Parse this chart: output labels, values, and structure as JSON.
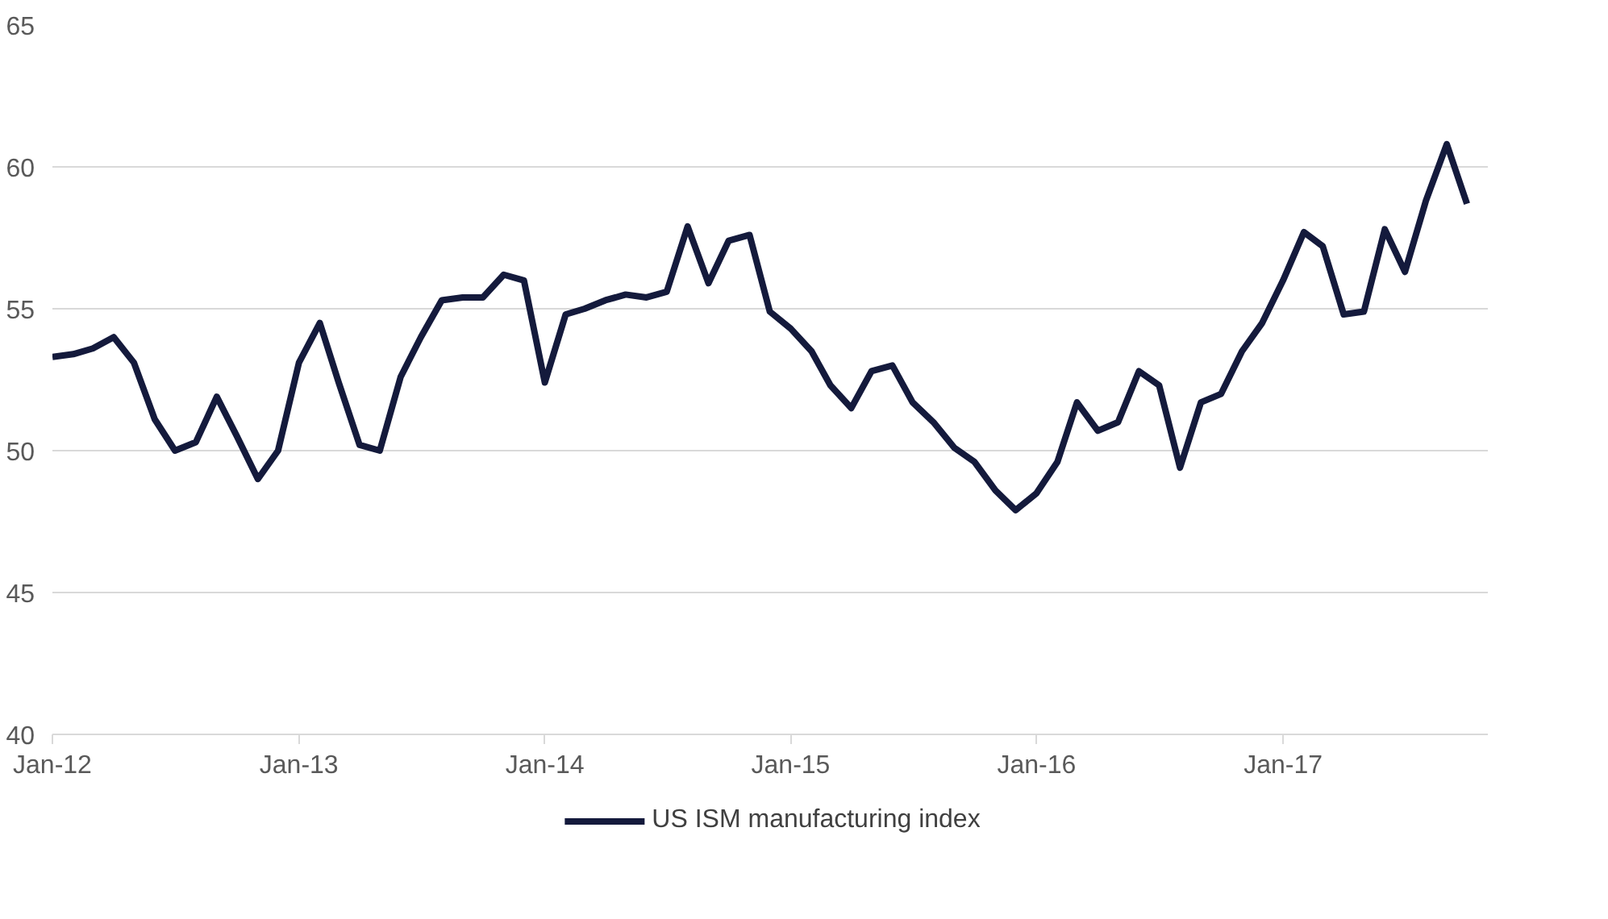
{
  "chart_data": {
    "type": "line",
    "x": [
      "2012-01",
      "2012-02",
      "2012-03",
      "2012-04",
      "2012-05",
      "2012-06",
      "2012-07",
      "2012-08",
      "2012-09",
      "2012-10",
      "2012-11",
      "2012-12",
      "2013-01",
      "2013-02",
      "2013-03",
      "2013-04",
      "2013-05",
      "2013-06",
      "2013-07",
      "2013-08",
      "2013-09",
      "2013-10",
      "2013-11",
      "2013-12",
      "2014-01",
      "2014-02",
      "2014-03",
      "2014-04",
      "2014-05",
      "2014-06",
      "2014-07",
      "2014-08",
      "2014-09",
      "2014-10",
      "2014-11",
      "2014-12",
      "2015-01",
      "2015-02",
      "2015-03",
      "2015-04",
      "2015-05",
      "2015-06",
      "2015-07",
      "2015-08",
      "2015-09",
      "2015-10",
      "2015-11",
      "2015-12",
      "2016-01",
      "2016-02",
      "2016-03",
      "2016-04",
      "2016-05",
      "2016-06",
      "2016-07",
      "2016-08",
      "2016-09",
      "2016-10",
      "2016-11",
      "2016-12",
      "2017-01",
      "2017-02",
      "2017-03",
      "2017-04",
      "2017-05",
      "2017-06",
      "2017-07",
      "2017-08",
      "2017-09",
      "2017-10"
    ],
    "series": [
      {
        "name": "US ISM manufacturing index",
        "color": "#141a3c",
        "values": [
          53.3,
          53.4,
          53.6,
          54.0,
          53.1,
          51.1,
          50.0,
          50.3,
          51.9,
          50.5,
          49.0,
          50.0,
          53.1,
          54.5,
          52.4,
          50.2,
          50.0,
          52.6,
          54.0,
          55.3,
          55.4,
          55.4,
          56.2,
          56.0,
          52.4,
          54.8,
          55.0,
          55.3,
          55.5,
          55.4,
          55.6,
          57.9,
          55.9,
          57.4,
          57.6,
          54.9,
          54.3,
          53.5,
          52.3,
          51.5,
          52.8,
          53.0,
          51.7,
          51.0,
          50.1,
          49.6,
          48.6,
          47.9,
          48.5,
          49.6,
          51.7,
          50.7,
          51.0,
          52.8,
          52.3,
          49.4,
          51.7,
          52.0,
          53.5,
          54.5,
          56.0,
          57.7,
          57.2,
          54.8,
          54.9,
          57.8,
          56.3,
          58.8,
          60.8,
          58.7
        ]
      }
    ],
    "xlim": [
      "2012-01",
      "2017-11"
    ],
    "xticks": [
      {
        "value": "2012-01",
        "label": "Jan-12"
      },
      {
        "value": "2013-01",
        "label": "Jan-13"
      },
      {
        "value": "2014-01",
        "label": "Jan-14"
      },
      {
        "value": "2015-01",
        "label": "Jan-15"
      },
      {
        "value": "2016-01",
        "label": "Jan-16"
      },
      {
        "value": "2017-01",
        "label": "Jan-17"
      }
    ],
    "ylim": [
      40,
      65
    ],
    "yticks": [
      40,
      45,
      50,
      55,
      60,
      65
    ],
    "grid": "y",
    "legend": "bottom",
    "marker": "none",
    "line_style": "solid"
  }
}
